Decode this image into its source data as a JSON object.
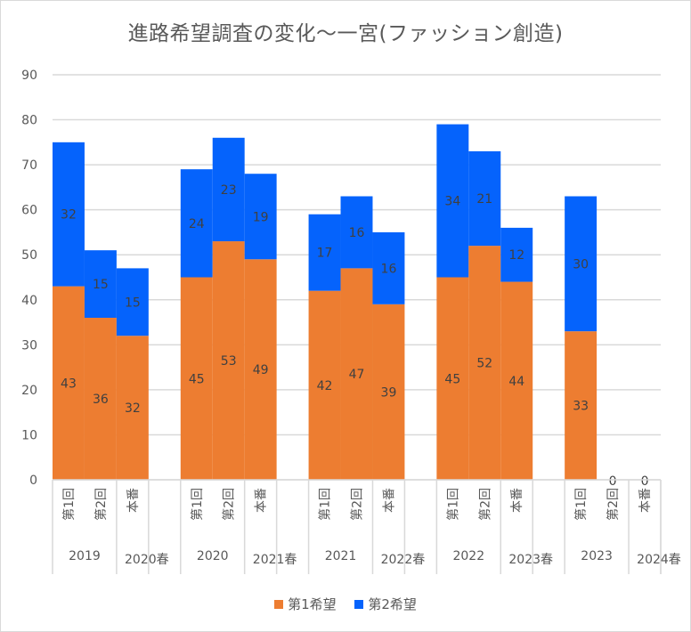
{
  "chart_data": {
    "type": "bar",
    "stacked": true,
    "title": "進路希望調査の変化〜一宮(ファッション創造)",
    "xlabel": "",
    "ylabel": "",
    "ylim": [
      0,
      90
    ],
    "yticks": [
      0,
      10,
      20,
      30,
      40,
      50,
      60,
      70,
      80,
      90
    ],
    "grid": true,
    "legend_position": "bottom",
    "groups": [
      {
        "year_label": "2019",
        "spring_label": "2020春",
        "categories": [
          "第1回",
          "第2回",
          "本番"
        ]
      },
      {
        "year_label": "2020",
        "spring_label": "2021春",
        "categories": [
          "第1回",
          "第2回",
          "本番"
        ]
      },
      {
        "year_label": "2021",
        "spring_label": "2022春",
        "categories": [
          "第1回",
          "第2回",
          "本番"
        ]
      },
      {
        "year_label": "2022",
        "spring_label": "2023春",
        "categories": [
          "第1回",
          "第2回",
          "本番"
        ]
      },
      {
        "year_label": "2023",
        "spring_label": "2024春",
        "categories": [
          "第1回",
          "第2回",
          "本番"
        ]
      }
    ],
    "series": [
      {
        "name": "第1希望",
        "color": "#ed7d31",
        "values": [
          [
            43,
            36,
            32
          ],
          [
            45,
            53,
            49
          ],
          [
            42,
            47,
            39
          ],
          [
            45,
            52,
            44
          ],
          [
            33,
            0,
            0
          ]
        ]
      },
      {
        "name": "第2希望",
        "color": "#0563fc",
        "values": [
          [
            32,
            15,
            15
          ],
          [
            24,
            23,
            19
          ],
          [
            17,
            16,
            16
          ],
          [
            34,
            21,
            12
          ],
          [
            30,
            null,
            null
          ]
        ]
      }
    ],
    "zero_labels": [
      "0",
      "0"
    ]
  },
  "legend": {
    "items": [
      {
        "label": "第1希望",
        "color": "#ed7d31"
      },
      {
        "label": "第2希望",
        "color": "#0563fc"
      }
    ]
  }
}
